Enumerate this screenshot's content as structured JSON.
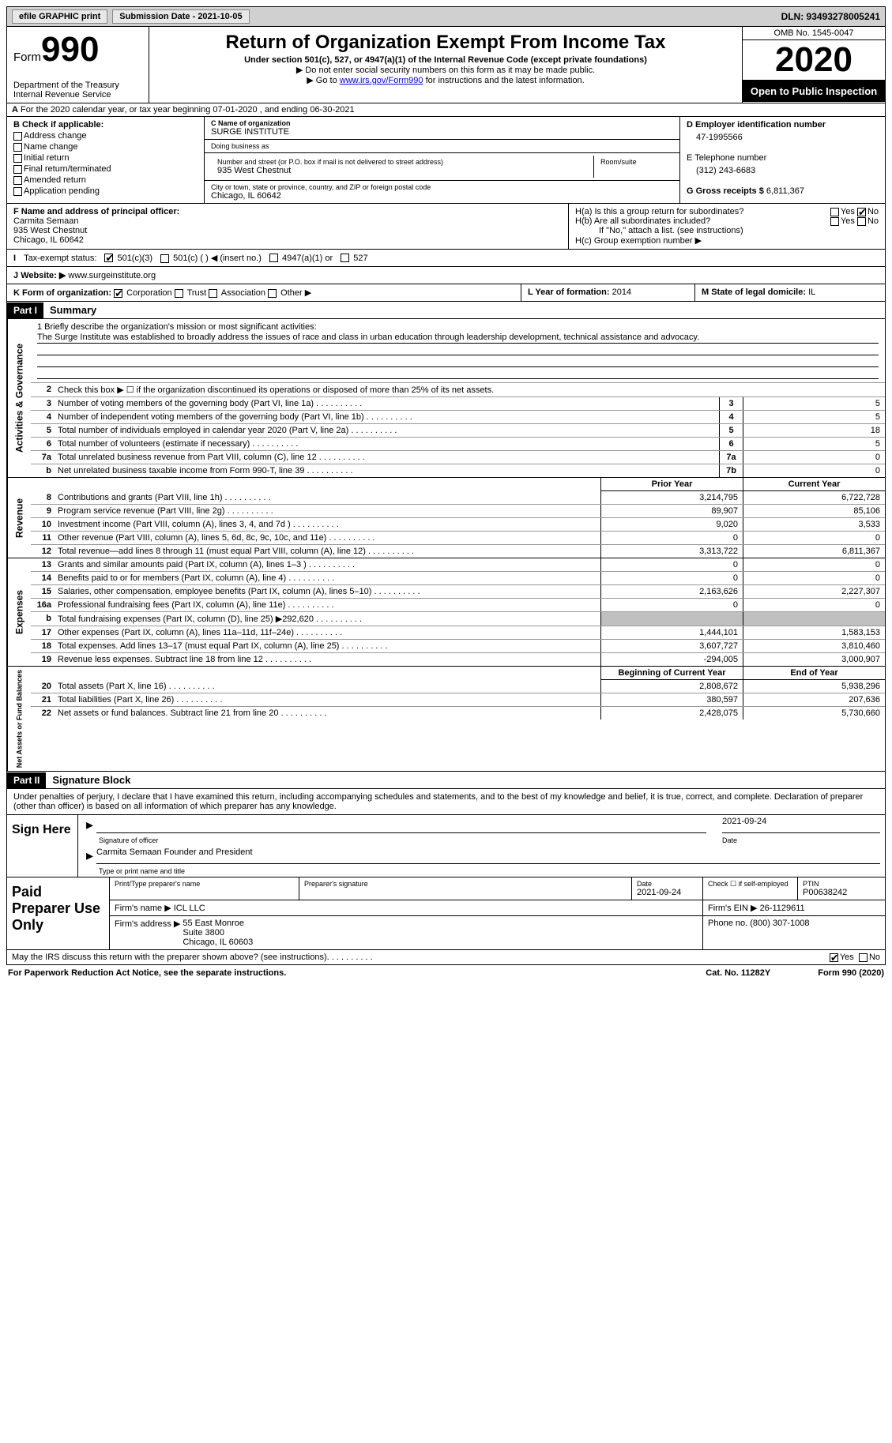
{
  "top": {
    "efile": "efile GRAPHIC print",
    "submission": "Submission Date - 2021-10-05",
    "dln": "DLN: 93493278005241"
  },
  "header": {
    "form_label": "Form",
    "form_number": "990",
    "dept": "Department of the Treasury\nInternal Revenue Service",
    "title": "Return of Organization Exempt From Income Tax",
    "subtitle": "Under section 501(c), 527, or 4947(a)(1) of the Internal Revenue Code (except private foundations)",
    "note1": "▶ Do not enter social security numbers on this form as it may be made public.",
    "note2_prefix": "▶ Go to ",
    "note2_link": "www.irs.gov/Form990",
    "note2_suffix": " for instructions and the latest information.",
    "omb": "OMB No. 1545-0047",
    "year": "2020",
    "inspect": "Open to Public Inspection"
  },
  "rowA": "For the 2020 calendar year, or tax year beginning 07-01-2020    , and ending 06-30-2021",
  "B": {
    "label": "B Check if applicable:",
    "items": [
      "Address change",
      "Name change",
      "Initial return",
      "Final return/terminated",
      "Amended return",
      "Application pending"
    ]
  },
  "C": {
    "name_label": "C Name of organization",
    "name": "SURGE INSTITUTE",
    "dba_label": "Doing business as",
    "dba": "",
    "street_label": "Number and street (or P.O. box if mail is not delivered to street address)",
    "room_label": "Room/suite",
    "street": "935 West Chestnut",
    "city_label": "City or town, state or province, country, and ZIP or foreign postal code",
    "city": "Chicago, IL  60642"
  },
  "D": {
    "label": "D Employer identification number",
    "value": "47-1995566"
  },
  "E": {
    "label": "E Telephone number",
    "value": "(312) 243-6683"
  },
  "G": {
    "label": "G Gross receipts $",
    "value": "6,811,367"
  },
  "F": {
    "label": "F  Name and address of principal officer:",
    "name": "Carmita Semaan",
    "addr1": "935 West Chestnut",
    "addr2": "Chicago, IL  60642"
  },
  "H": {
    "a": "H(a)  Is this a group return for subordinates?",
    "b": "H(b)  Are all subordinates included?",
    "b_note": "If \"No,\" attach a list. (see instructions)",
    "c": "H(c)  Group exemption number ▶",
    "yes": "Yes",
    "no": "No"
  },
  "I": {
    "label": "Tax-exempt status:",
    "opts": [
      "501(c)(3)",
      "501(c) (  ) ◀ (insert no.)",
      "4947(a)(1) or",
      "527"
    ]
  },
  "J": {
    "label": "Website: ▶",
    "value": "www.surgeinstitute.org"
  },
  "K": {
    "label": "K Form of organization:",
    "opts": [
      "Corporation",
      "Trust",
      "Association",
      "Other ▶"
    ]
  },
  "L": {
    "label": "L Year of formation:",
    "value": "2014"
  },
  "M": {
    "label": "M State of legal domicile:",
    "value": "IL"
  },
  "part1": {
    "label": "Part I",
    "title": "Summary"
  },
  "mission": {
    "label": "1   Briefly describe the organization's mission or most significant activities:",
    "text": "The Surge Institute was established to broadly address the issues of race and class in urban education through leadership development, technical assistance and advocacy."
  },
  "line2": "Check this box ▶ ☐  if the organization discontinued its operations or disposed of more than 25% of its net assets.",
  "governance_rows": [
    {
      "n": "3",
      "d": "Number of voting members of the governing body (Part VI, line 1a)",
      "box": "3",
      "v": "5"
    },
    {
      "n": "4",
      "d": "Number of independent voting members of the governing body (Part VI, line 1b)",
      "box": "4",
      "v": "5"
    },
    {
      "n": "5",
      "d": "Total number of individuals employed in calendar year 2020 (Part V, line 2a)",
      "box": "5",
      "v": "18"
    },
    {
      "n": "6",
      "d": "Total number of volunteers (estimate if necessary)",
      "box": "6",
      "v": "5"
    },
    {
      "n": "7a",
      "d": "Total unrelated business revenue from Part VIII, column (C), line 12",
      "box": "7a",
      "v": "0"
    },
    {
      "n": "b",
      "d": "Net unrelated business taxable income from Form 990-T, line 39",
      "box": "7b",
      "v": "0"
    }
  ],
  "col_headers": {
    "prior": "Prior Year",
    "current": "Current Year"
  },
  "revenue_rows": [
    {
      "n": "8",
      "d": "Contributions and grants (Part VIII, line 1h)",
      "p": "3,214,795",
      "c": "6,722,728"
    },
    {
      "n": "9",
      "d": "Program service revenue (Part VIII, line 2g)",
      "p": "89,907",
      "c": "85,106"
    },
    {
      "n": "10",
      "d": "Investment income (Part VIII, column (A), lines 3, 4, and 7d )",
      "p": "9,020",
      "c": "3,533"
    },
    {
      "n": "11",
      "d": "Other revenue (Part VIII, column (A), lines 5, 6d, 8c, 9c, 10c, and 11e)",
      "p": "0",
      "c": "0"
    },
    {
      "n": "12",
      "d": "Total revenue—add lines 8 through 11 (must equal Part VIII, column (A), line 12)",
      "p": "3,313,722",
      "c": "6,811,367"
    }
  ],
  "expense_rows": [
    {
      "n": "13",
      "d": "Grants and similar amounts paid (Part IX, column (A), lines 1–3 )",
      "p": "0",
      "c": "0"
    },
    {
      "n": "14",
      "d": "Benefits paid to or for members (Part IX, column (A), line 4)",
      "p": "0",
      "c": "0"
    },
    {
      "n": "15",
      "d": "Salaries, other compensation, employee benefits (Part IX, column (A), lines 5–10)",
      "p": "2,163,626",
      "c": "2,227,307"
    },
    {
      "n": "16a",
      "d": "Professional fundraising fees (Part IX, column (A), line 11e)",
      "p": "0",
      "c": "0"
    },
    {
      "n": "b",
      "d": "Total fundraising expenses (Part IX, column (D), line 25) ▶292,620",
      "p": "",
      "c": "",
      "shaded": true
    },
    {
      "n": "17",
      "d": "Other expenses (Part IX, column (A), lines 11a–11d, 11f–24e)",
      "p": "1,444,101",
      "c": "1,583,153"
    },
    {
      "n": "18",
      "d": "Total expenses. Add lines 13–17 (must equal Part IX, column (A), line 25)",
      "p": "3,607,727",
      "c": "3,810,460"
    },
    {
      "n": "19",
      "d": "Revenue less expenses. Subtract line 18 from line 12",
      "p": "-294,005",
      "c": "3,000,907"
    }
  ],
  "net_headers": {
    "begin": "Beginning of Current Year",
    "end": "End of Year"
  },
  "net_rows": [
    {
      "n": "20",
      "d": "Total assets (Part X, line 16)",
      "p": "2,808,672",
      "c": "5,938,296"
    },
    {
      "n": "21",
      "d": "Total liabilities (Part X, line 26)",
      "p": "380,597",
      "c": "207,636"
    },
    {
      "n": "22",
      "d": "Net assets or fund balances. Subtract line 21 from line 20",
      "p": "2,428,075",
      "c": "5,730,660"
    }
  ],
  "side_labels": {
    "gov": "Activities & Governance",
    "rev": "Revenue",
    "exp": "Expenses",
    "net": "Net Assets or Fund Balances"
  },
  "part2": {
    "label": "Part II",
    "title": "Signature Block"
  },
  "sig": {
    "intro": "Under penalties of perjury, I declare that I have examined this return, including accompanying schedules and statements, and to the best of my knowledge and belief, it is true, correct, and complete. Declaration of preparer (other than officer) is based on all information of which preparer has any knowledge.",
    "sign_here": "Sign Here",
    "sig_label": "Signature of officer",
    "date": "2021-09-24",
    "date_label": "Date",
    "name": "Carmita Semaan  Founder and President",
    "name_label": "Type or print name and title"
  },
  "prep": {
    "label": "Paid Preparer Use Only",
    "h1": "Print/Type preparer's name",
    "h2": "Preparer's signature",
    "h3": "Date",
    "h3v": "2021-09-24",
    "h4": "Check ☐ if self-employed",
    "h5": "PTIN",
    "h5v": "P00638242",
    "firm_name_label": "Firm's name    ▶",
    "firm_name": "ICL LLC",
    "firm_ein_label": "Firm's EIN ▶",
    "firm_ein": "26-1129611",
    "firm_addr_label": "Firm's address ▶",
    "firm_addr": "55 East Monroe\nSuite 3800\nChicago, IL  60603",
    "phone_label": "Phone no.",
    "phone": "(800) 307-1008"
  },
  "footer": {
    "q": "May the IRS discuss this return with the preparer shown above? (see instructions)",
    "yes": "Yes",
    "no": "No",
    "pra": "For Paperwork Reduction Act Notice, see the separate instructions.",
    "cat": "Cat. No. 11282Y",
    "form": "Form 990 (2020)"
  }
}
